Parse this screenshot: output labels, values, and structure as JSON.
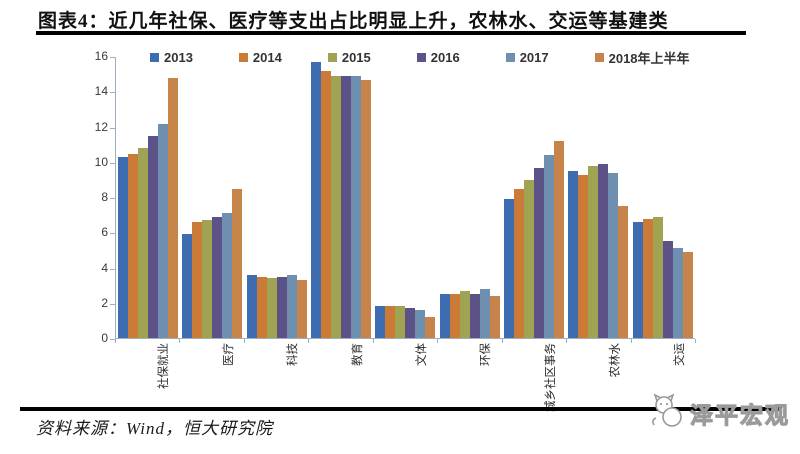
{
  "title": "图表4：近几年社保、医疗等支出占比明显上升，农林水、交运等基建类",
  "chart_data": {
    "type": "bar",
    "title": "图表4：近几年社保、医疗等支出占比明显上升，农林水、交运等基建类",
    "categories": [
      "社保就业",
      "医疗",
      "科技",
      "教育",
      "文体",
      "环保",
      "城乡社区事务",
      "农林水",
      "交运"
    ],
    "series": [
      {
        "name": "2013",
        "color": "#3e6cb0",
        "values": [
          10.3,
          5.9,
          3.6,
          15.7,
          1.8,
          2.5,
          7.9,
          9.5,
          6.6
        ]
      },
      {
        "name": "2014",
        "color": "#cb7a38",
        "values": [
          10.5,
          6.6,
          3.5,
          15.2,
          1.8,
          2.5,
          8.5,
          9.3,
          6.8
        ]
      },
      {
        "name": "2015",
        "color": "#a0a351",
        "values": [
          10.8,
          6.7,
          3.4,
          14.9,
          1.8,
          2.7,
          9.0,
          9.8,
          6.9
        ]
      },
      {
        "name": "2016",
        "color": "#5c5287",
        "values": [
          11.5,
          6.9,
          3.5,
          14.9,
          1.7,
          2.5,
          9.7,
          9.9,
          5.5
        ]
      },
      {
        "name": "2017",
        "color": "#6e8fb0",
        "values": [
          12.2,
          7.1,
          3.6,
          14.9,
          1.6,
          2.8,
          10.4,
          9.4,
          5.1
        ]
      },
      {
        "name": "2018年上半年",
        "color": "#c6834a",
        "values": [
          14.8,
          8.5,
          3.3,
          14.7,
          1.2,
          2.4,
          11.2,
          7.5,
          4.9
        ]
      }
    ],
    "xlabel": "",
    "ylabel": "",
    "ylim": [
      0,
      16
    ],
    "yticks": [
      0,
      2,
      4,
      6,
      8,
      10,
      12,
      14,
      16
    ],
    "grid": false,
    "legend_position": "top",
    "axis_color": "#9fb0bc"
  },
  "footer": {
    "source": "资料来源：Wind，恒大研究院",
    "logo_text": "泽平宏观"
  }
}
